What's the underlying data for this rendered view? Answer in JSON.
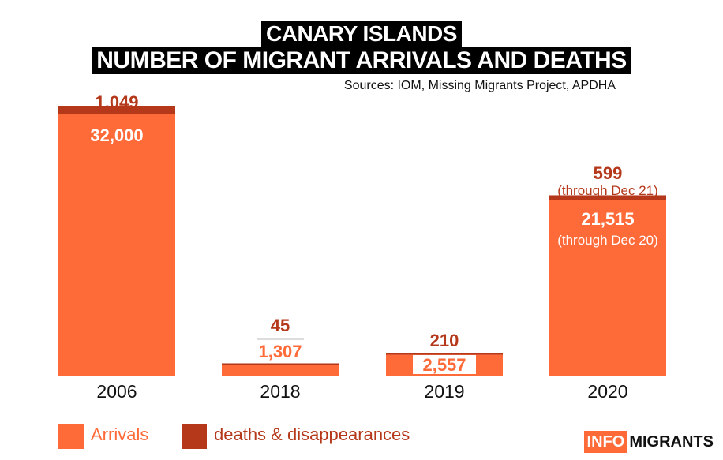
{
  "title_line1": "CANARY ISLANDS",
  "title_line2": "NUMBER OF MIGRANT ARRIVALS AND DEATHS",
  "sources": "Sources: IOM, Missing Migrants Project, APDHA",
  "colors": {
    "arrivals": "#ff6a39",
    "deaths": "#b5381a",
    "label_dark": "#b5381a",
    "text": "#111111"
  },
  "legend": {
    "arrivals": "Arrivals",
    "deaths": "deaths & disappearances"
  },
  "logo": {
    "part1": "INFO",
    "part2": "MIGRANTS"
  },
  "chart_data": {
    "type": "bar",
    "stacked": true,
    "categories": [
      "2006",
      "2018",
      "2019",
      "2020"
    ],
    "series": [
      {
        "name": "Arrivals",
        "values": [
          32000,
          1307,
          2557,
          21515
        ]
      },
      {
        "name": "deaths & disappearances",
        "values": [
          1049,
          45,
          210,
          599
        ]
      }
    ],
    "data_labels": {
      "arrivals": [
        "32,000",
        "1,307",
        "2,557",
        "21,515"
      ],
      "deaths": [
        "1,049",
        "45",
        "210",
        "599"
      ],
      "notes": {
        "2020_arrivals": "(through Dec 20)",
        "2020_deaths": "(through Dec 21)"
      }
    },
    "title": "",
    "xlabel": "",
    "ylabel": "",
    "legend_position": "bottom-left",
    "grid": false
  }
}
